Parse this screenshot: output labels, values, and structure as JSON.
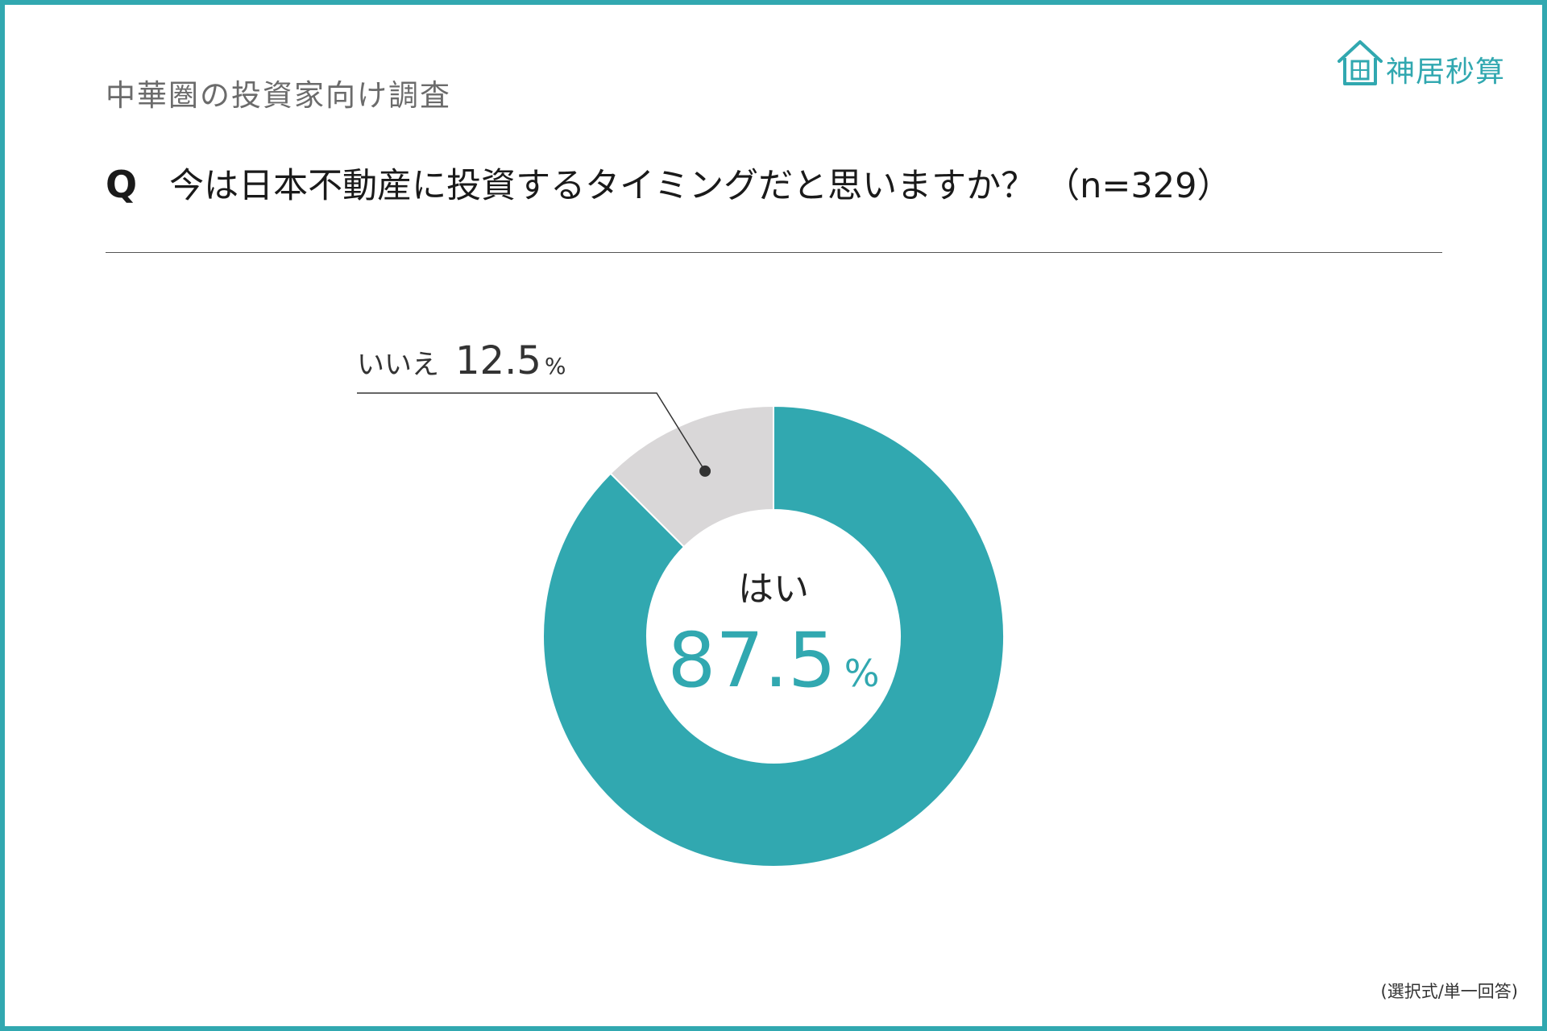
{
  "header": {
    "survey_label": "中華圏の投資家向け調査",
    "question_mark": "Q",
    "question_text": "今は日本不動産に投資するタイミングだと思いますか？",
    "sample_size": "（n=329）"
  },
  "logo": {
    "text": "神居秒算",
    "icon": "house-icon"
  },
  "footnote": "(選択式/単一回答)",
  "colors": {
    "accent": "#31a8b0",
    "no_slice": "#d9d7d8",
    "frame": "#31a8b0"
  },
  "chart_data": {
    "type": "pie",
    "variant": "donut",
    "categories": [
      "はい",
      "いいえ"
    ],
    "values": [
      87.5,
      12.5
    ],
    "value_labels": [
      "87.5",
      "12.5"
    ],
    "unit": "%",
    "title": "",
    "colors": [
      "#31a8b0",
      "#d9d7d8"
    ]
  }
}
